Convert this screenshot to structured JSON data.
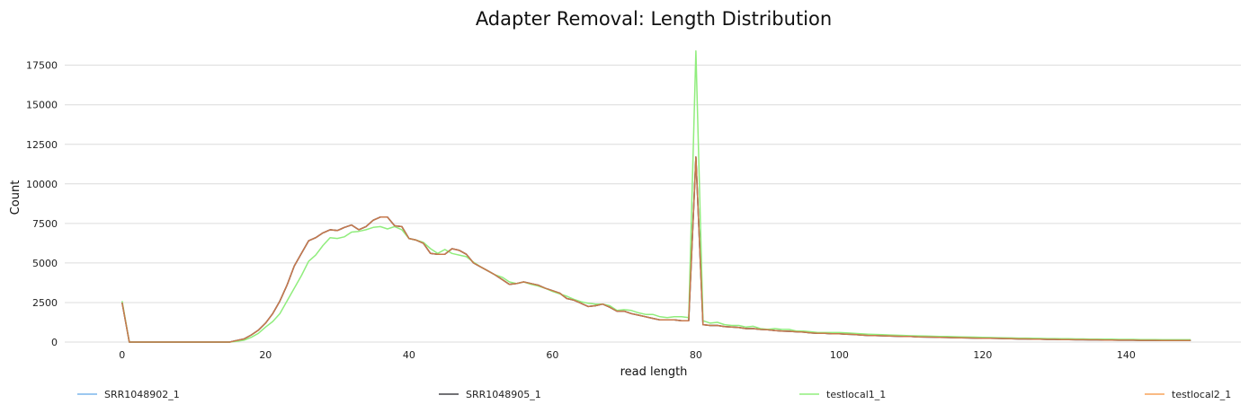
{
  "chart_data": {
    "type": "line",
    "title": "Adapter Removal: Length Distribution",
    "xlabel": "read length",
    "ylabel": "Count",
    "xlim": [
      -8,
      156
    ],
    "ylim": [
      0,
      18900
    ],
    "xticks": [
      0,
      20,
      40,
      60,
      80,
      100,
      120,
      140
    ],
    "yticks": [
      0,
      2500,
      5000,
      7500,
      10000,
      12500,
      15000,
      17500
    ],
    "grid": "horizontal",
    "legend_position": "bottom",
    "x": [
      0,
      1,
      2,
      3,
      4,
      5,
      6,
      7,
      8,
      9,
      10,
      11,
      12,
      13,
      14,
      15,
      16,
      17,
      18,
      19,
      20,
      21,
      22,
      23,
      24,
      25,
      26,
      27,
      28,
      29,
      30,
      31,
      32,
      33,
      34,
      35,
      36,
      37,
      38,
      39,
      40,
      41,
      42,
      43,
      44,
      45,
      46,
      47,
      48,
      49,
      50,
      51,
      52,
      53,
      54,
      55,
      56,
      57,
      58,
      59,
      60,
      61,
      62,
      63,
      64,
      65,
      66,
      67,
      68,
      69,
      70,
      71,
      72,
      73,
      74,
      75,
      76,
      77,
      78,
      79,
      80,
      81,
      82,
      83,
      84,
      85,
      86,
      87,
      88,
      89,
      90,
      91,
      92,
      93,
      94,
      95,
      96,
      97,
      98,
      99,
      100,
      101,
      102,
      103,
      104,
      105,
      106,
      107,
      108,
      109,
      110,
      111,
      112,
      113,
      114,
      115,
      116,
      117,
      118,
      119,
      120,
      121,
      122,
      123,
      124,
      125,
      126,
      127,
      128,
      129,
      130,
      131,
      132,
      133,
      134,
      135,
      136,
      137,
      138,
      139,
      140,
      141,
      142,
      143,
      144,
      145,
      146,
      147,
      148,
      149
    ],
    "series": [
      {
        "name": "SRR1048902_1",
        "color": "#7cb5ec",
        "values": [
          2500,
          0,
          0,
          0,
          0,
          0,
          0,
          0,
          0,
          0,
          0,
          0,
          0,
          0,
          0,
          0,
          100,
          200,
          450,
          750,
          1200,
          1800,
          2600,
          3600,
          4800,
          5600,
          6400,
          6600,
          6900,
          7100,
          7050,
          7250,
          7400,
          7100,
          7300,
          7700,
          7900,
          7900,
          7350,
          7300,
          6550,
          6450,
          6250,
          5600,
          5550,
          5550,
          5900,
          5800,
          5550,
          5000,
          4750,
          4500,
          4250,
          3950,
          3650,
          3700,
          3800,
          3700,
          3600,
          3400,
          3250,
          3100,
          2750,
          2650,
          2450,
          2250,
          2300,
          2400,
          2200,
          1950,
          1950,
          1800,
          1700,
          1600,
          1500,
          1400,
          1400,
          1400,
          1350,
          1350,
          11700,
          1100,
          1050,
          1050,
          980,
          950,
          920,
          850,
          850,
          800,
          780,
          730,
          700,
          680,
          650,
          630,
          580,
          550,
          550,
          520,
          520,
          500,
          480,
          450,
          420,
          410,
          400,
          380,
          370,
          360,
          350,
          330,
          320,
          310,
          300,
          290,
          280,
          270,
          260,
          250,
          240,
          240,
          230,
          220,
          210,
          200,
          200,
          190,
          180,
          170,
          170,
          160,
          160,
          150,
          150,
          140,
          140,
          130,
          130,
          120,
          120,
          120,
          110,
          110,
          110,
          100,
          100,
          100,
          100,
          100
        ]
      },
      {
        "name": "SRR1048905_1",
        "color": "#434348",
        "values": [
          2500,
          0,
          0,
          0,
          0,
          0,
          0,
          0,
          0,
          0,
          0,
          0,
          0,
          0,
          0,
          0,
          100,
          200,
          450,
          750,
          1200,
          1800,
          2600,
          3600,
          4800,
          5600,
          6400,
          6600,
          6900,
          7100,
          7050,
          7250,
          7400,
          7100,
          7300,
          7700,
          7900,
          7900,
          7350,
          7300,
          6550,
          6450,
          6250,
          5600,
          5550,
          5550,
          5900,
          5800,
          5550,
          5000,
          4750,
          4500,
          4250,
          3950,
          3650,
          3700,
          3800,
          3700,
          3600,
          3400,
          3250,
          3100,
          2750,
          2650,
          2450,
          2250,
          2300,
          2400,
          2200,
          1950,
          1950,
          1800,
          1700,
          1600,
          1500,
          1400,
          1400,
          1400,
          1350,
          1350,
          11700,
          1100,
          1050,
          1050,
          980,
          950,
          920,
          850,
          850,
          800,
          780,
          730,
          700,
          680,
          650,
          630,
          580,
          550,
          550,
          520,
          520,
          500,
          480,
          450,
          420,
          410,
          400,
          380,
          370,
          360,
          350,
          330,
          320,
          310,
          300,
          290,
          280,
          270,
          260,
          250,
          240,
          240,
          230,
          220,
          210,
          200,
          200,
          190,
          180,
          170,
          170,
          160,
          160,
          150,
          150,
          140,
          140,
          130,
          130,
          120,
          120,
          120,
          110,
          110,
          110,
          100,
          100,
          100,
          100,
          100
        ]
      },
      {
        "name": "testlocal1_1",
        "color": "#90ed7d",
        "values": [
          2600,
          0,
          0,
          0,
          0,
          0,
          0,
          0,
          0,
          0,
          0,
          0,
          0,
          0,
          0,
          0,
          50,
          120,
          300,
          550,
          950,
          1300,
          1800,
          2600,
          3400,
          4200,
          5100,
          5500,
          6100,
          6600,
          6550,
          6650,
          6950,
          7000,
          7100,
          7250,
          7300,
          7150,
          7300,
          7100,
          6550,
          6450,
          6300,
          5900,
          5600,
          5850,
          5600,
          5500,
          5400,
          5050,
          4750,
          4500,
          4250,
          4100,
          3800,
          3700,
          3800,
          3650,
          3550,
          3400,
          3200,
          3050,
          2900,
          2700,
          2550,
          2450,
          2400,
          2400,
          2300,
          2000,
          2050,
          2000,
          1850,
          1750,
          1750,
          1600,
          1550,
          1600,
          1600,
          1550,
          18400,
          1350,
          1200,
          1250,
          1100,
          1050,
          1050,
          950,
          1000,
          850,
          800,
          850,
          800,
          800,
          700,
          700,
          650,
          600,
          600,
          600,
          600,
          580,
          550,
          520,
          500,
          480,
          470,
          450,
          430,
          420,
          400,
          390,
          380,
          370,
          360,
          350,
          340,
          330,
          320,
          310,
          300,
          290,
          280,
          270,
          260,
          250,
          250,
          240,
          230,
          220,
          220,
          210,
          210,
          200,
          200,
          190,
          190,
          180,
          180,
          170,
          170,
          170,
          160,
          160,
          160,
          150,
          150,
          150,
          150,
          150
        ]
      },
      {
        "name": "testlocal2_1",
        "color": "#f7a35c",
        "values": [
          2500,
          0,
          0,
          0,
          0,
          0,
          0,
          0,
          0,
          0,
          0,
          0,
          0,
          0,
          0,
          0,
          100,
          200,
          450,
          750,
          1200,
          1800,
          2600,
          3600,
          4800,
          5600,
          6400,
          6600,
          6900,
          7100,
          7050,
          7250,
          7400,
          7100,
          7300,
          7700,
          7900,
          7900,
          7350,
          7300,
          6550,
          6450,
          6250,
          5600,
          5550,
          5550,
          5900,
          5800,
          5550,
          5000,
          4750,
          4500,
          4250,
          3950,
          3650,
          3700,
          3800,
          3700,
          3600,
          3400,
          3250,
          3100,
          2750,
          2650,
          2450,
          2250,
          2300,
          2400,
          2200,
          1950,
          1950,
          1800,
          1700,
          1600,
          1500,
          1400,
          1400,
          1400,
          1350,
          1350,
          11700,
          1100,
          1050,
          1050,
          980,
          950,
          920,
          850,
          850,
          800,
          780,
          730,
          700,
          680,
          650,
          630,
          580,
          550,
          550,
          520,
          520,
          500,
          480,
          450,
          420,
          410,
          400,
          380,
          370,
          360,
          350,
          330,
          320,
          310,
          300,
          290,
          280,
          270,
          260,
          250,
          240,
          240,
          230,
          220,
          210,
          200,
          200,
          190,
          180,
          170,
          170,
          160,
          160,
          150,
          150,
          140,
          140,
          130,
          130,
          120,
          120,
          120,
          110,
          110,
          110,
          100,
          100,
          100,
          100,
          100
        ]
      }
    ],
    "overlay_line_color": "#c8784b"
  }
}
